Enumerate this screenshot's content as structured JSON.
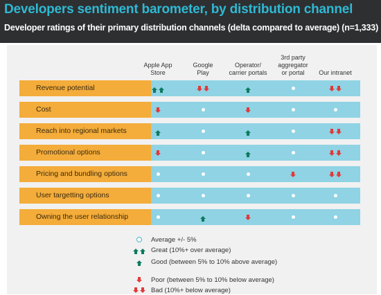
{
  "title": "Developers sentiment barometer, by distribution channel",
  "subtitle": "Developer ratings of their primary distribution channels (delta compared to average) (n=1,333)",
  "colors": {
    "header_bg": "#2e2f31",
    "title": "#2fb9d3",
    "row_label_bg": "#f4ac3a",
    "row_cells_bg": "#8fd3e4",
    "up": "#0d7a5f",
    "down": "#e03a3a"
  },
  "chart_data": {
    "type": "table",
    "title": "Developers sentiment barometer, by distribution channel",
    "subtitle": "Developer ratings of their primary distribution channels (delta compared to average) (n=1,333)",
    "columns": [
      {
        "label": "Apple App Store",
        "lines": [
          "Apple App",
          "Store"
        ]
      },
      {
        "label": "Google Play",
        "lines": [
          "Google",
          "Play"
        ]
      },
      {
        "label": "Operator/ carrier portals",
        "lines": [
          "Operator/",
          "carrier portals"
        ]
      },
      {
        "label": "3rd party aggregator or portal",
        "lines": [
          "3rd party",
          "aggregator",
          "or portal"
        ]
      },
      {
        "label": "Our intranet",
        "lines": [
          "Our intranet"
        ]
      }
    ],
    "rows": [
      {
        "label": "Revenue potential",
        "values": [
          "great",
          "bad",
          "good",
          "average",
          "bad"
        ]
      },
      {
        "label": "Cost",
        "values": [
          "poor",
          "average",
          "poor",
          "average",
          "average"
        ]
      },
      {
        "label": "Reach into regional markets",
        "values": [
          "good",
          "average",
          "good",
          "average",
          "bad"
        ]
      },
      {
        "label": "Promotional options",
        "values": [
          "poor",
          "average",
          "good",
          "average",
          "bad"
        ]
      },
      {
        "label": "Pricing and bundling options",
        "values": [
          "average",
          "average",
          "average",
          "poor",
          "bad"
        ]
      },
      {
        "label": "User targetting options",
        "values": [
          "average",
          "average",
          "average",
          "average",
          "average"
        ]
      },
      {
        "label": "Owning the user relationship",
        "values": [
          "average",
          "good",
          "poor",
          "average",
          "average"
        ]
      }
    ],
    "legend": [
      {
        "key": "average",
        "text": "Average +/- 5%"
      },
      {
        "key": "great",
        "text": "Great (10%+ over average)"
      },
      {
        "key": "good",
        "text": "Good (between 5% to 10% above average)"
      },
      {
        "key": "poor",
        "text": "Poor (between 5% to 10% below average)"
      },
      {
        "key": "bad",
        "text": "Bad (10%+  below average)"
      }
    ]
  }
}
